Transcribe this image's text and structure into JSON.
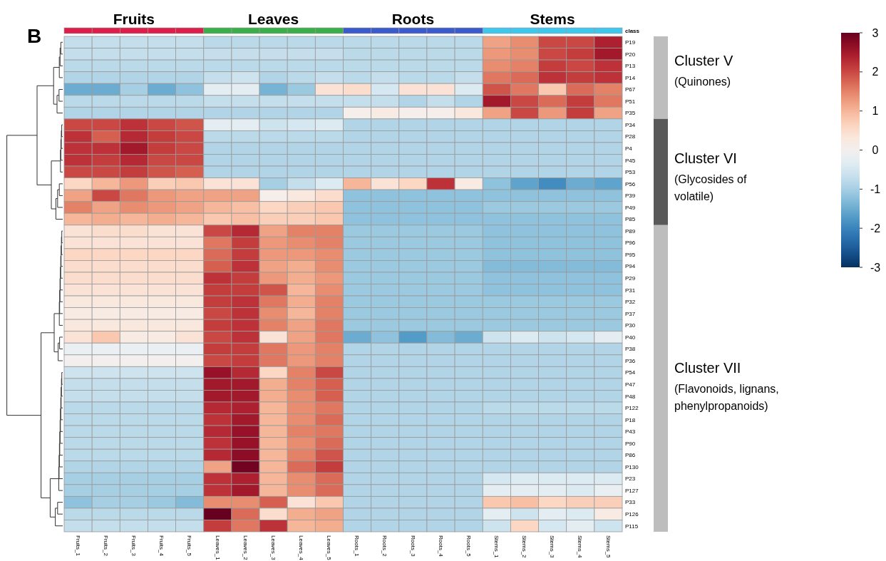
{
  "chart_data": {
    "type": "heatmap",
    "categories": [
      "Fruits_1",
      "Fruits_2",
      "Fruits_3",
      "Fruits_4",
      "Fruits_5",
      "Leaves_1",
      "Leaves_2",
      "Leaves_3",
      "Leaves_4",
      "Leaves_5",
      "Roots_1",
      "Roots_2",
      "Roots_3",
      "Roots_4",
      "Roots_5",
      "Stems_1",
      "Stems_2",
      "Stems_3",
      "Stems_4",
      "Stems_5"
    ],
    "y_categories": [
      "P19",
      "P20",
      "P13",
      "P14",
      "P67",
      "P51",
      "P35",
      "P34",
      "P28",
      "P4",
      "P45",
      "P53",
      "P56",
      "P39",
      "P49",
      "P85",
      "P89",
      "P96",
      "P95",
      "P94",
      "P29",
      "P31",
      "P32",
      "P37",
      "P30",
      "P40",
      "P38",
      "P36",
      "P54",
      "P47",
      "P48",
      "P122",
      "P18",
      "P43",
      "P90",
      "P86",
      "P130",
      "P23",
      "P127",
      "P33",
      "P126",
      "P115"
    ],
    "cells": [
      [
        -0.7,
        -0.7,
        -0.7,
        -0.7,
        -0.7,
        -0.8,
        -0.8,
        -0.8,
        -0.8,
        -0.8,
        -0.8,
        -0.8,
        -0.8,
        -0.8,
        -0.8,
        1.2,
        1.4,
        2.0,
        2.0,
        2.4
      ],
      [
        -0.7,
        -0.7,
        -0.7,
        -0.7,
        -0.7,
        -0.7,
        -0.7,
        -0.7,
        -0.7,
        -0.7,
        -0.8,
        -0.8,
        -0.8,
        -0.8,
        -0.8,
        1.3,
        1.4,
        2.0,
        2.1,
        2.5
      ],
      [
        -0.8,
        -0.8,
        -0.8,
        -0.8,
        -0.8,
        -0.8,
        -0.8,
        -0.8,
        -0.8,
        -0.8,
        -0.8,
        -0.8,
        -0.8,
        -0.8,
        -0.8,
        1.4,
        1.5,
        2.1,
        2.0,
        2.2
      ],
      [
        -0.9,
        -0.9,
        -0.9,
        -0.9,
        -0.9,
        -0.7,
        -0.6,
        -0.9,
        -0.8,
        -0.7,
        -0.8,
        -0.7,
        -0.8,
        -0.8,
        -0.7,
        1.6,
        1.7,
        2.2,
        2.1,
        2.2
      ],
      [
        -1.5,
        -1.5,
        -1.0,
        -1.5,
        -1.2,
        -0.3,
        -0.3,
        -1.4,
        -1.1,
        0.4,
        0.5,
        -0.5,
        0.4,
        0.4,
        -0.4,
        1.9,
        1.6,
        0.8,
        1.7,
        1.5
      ],
      [
        -0.8,
        -0.8,
        -0.8,
        -0.8,
        -0.8,
        -0.7,
        -0.7,
        -0.7,
        -0.7,
        -0.7,
        -0.7,
        -0.7,
        -0.9,
        -0.7,
        -0.9,
        2.5,
        2.0,
        1.7,
        2.1,
        1.6
      ],
      [
        -0.9,
        -0.9,
        -0.9,
        -0.9,
        -0.9,
        -0.9,
        -0.9,
        -0.9,
        -0.9,
        -0.9,
        0.1,
        0.2,
        0.1,
        0.1,
        0.3,
        1.2,
        2.0,
        1.3,
        2.1,
        1.2
      ],
      [
        2.0,
        2.0,
        2.2,
        2.0,
        1.9,
        -0.3,
        -0.3,
        -0.6,
        -0.5,
        -0.4,
        -0.9,
        -0.9,
        -0.9,
        -0.9,
        -0.9,
        -0.9,
        -0.9,
        -0.9,
        -0.9,
        -0.9
      ],
      [
        2.2,
        1.8,
        2.3,
        2.1,
        2.0,
        -0.8,
        -0.8,
        -0.8,
        -0.8,
        -0.8,
        -0.9,
        -0.9,
        -0.9,
        -0.9,
        -0.9,
        -0.9,
        -0.9,
        -0.9,
        -0.9,
        -0.9
      ],
      [
        2.2,
        2.2,
        2.5,
        2.1,
        2.0,
        -0.9,
        -0.9,
        -0.9,
        -0.9,
        -0.9,
        -0.9,
        -0.9,
        -0.9,
        -0.9,
        -0.9,
        -0.9,
        -0.9,
        -0.9,
        -0.9,
        -0.9
      ],
      [
        2.2,
        2.1,
        2.3,
        2.0,
        2.0,
        -0.9,
        -0.9,
        -0.9,
        -0.9,
        -0.9,
        -0.9,
        -0.9,
        -0.9,
        -0.9,
        -0.9,
        -0.9,
        -0.9,
        -0.9,
        -0.9,
        -0.9
      ],
      [
        2.0,
        2.0,
        2.1,
        1.9,
        1.8,
        -0.9,
        -0.9,
        -0.9,
        -0.9,
        -0.9,
        -0.9,
        -0.9,
        -0.9,
        -0.9,
        -0.9,
        -0.9,
        -0.9,
        -0.9,
        -0.9,
        -0.9
      ],
      [
        0.6,
        1.0,
        1.3,
        0.7,
        0.8,
        0.4,
        0.4,
        -1.0,
        -0.7,
        -0.4,
        1.0,
        0.4,
        0.6,
        2.2,
        0.2,
        -1.2,
        -1.6,
        -1.9,
        -1.5,
        -1.6
      ],
      [
        1.2,
        2.0,
        1.6,
        1.3,
        1.2,
        1.2,
        1.2,
        0.1,
        0.3,
        0.5,
        -1.2,
        -1.2,
        -1.2,
        -1.2,
        -1.2,
        -1.2,
        -1.2,
        -1.2,
        -1.2,
        -1.2
      ],
      [
        1.5,
        1.2,
        1.4,
        1.3,
        1.2,
        1.0,
        0.9,
        0.6,
        0.7,
        0.8,
        -1.2,
        -1.2,
        -1.2,
        -1.2,
        -1.2,
        -1.1,
        -1.1,
        -1.1,
        -1.1,
        -1.1
      ],
      [
        1.0,
        1.1,
        1.0,
        1.1,
        1.0,
        0.8,
        0.9,
        0.7,
        0.7,
        0.8,
        -1.2,
        -1.2,
        -1.2,
        -1.2,
        -1.2,
        -1.2,
        -1.2,
        -1.2,
        -1.2,
        -1.2
      ],
      [
        0.4,
        0.5,
        0.5,
        0.4,
        0.4,
        2.0,
        2.3,
        1.2,
        1.5,
        1.5,
        -1.1,
        -1.1,
        -1.1,
        -1.1,
        -1.1,
        -1.2,
        -1.2,
        -1.2,
        -1.2,
        -1.2
      ],
      [
        0.4,
        0.4,
        0.4,
        0.4,
        0.4,
        1.6,
        2.1,
        1.3,
        1.4,
        1.5,
        -1.1,
        -1.1,
        -1.1,
        -1.1,
        -1.1,
        -1.2,
        -1.2,
        -1.2,
        -1.2,
        -1.2
      ],
      [
        0.6,
        0.6,
        0.6,
        0.6,
        0.6,
        1.7,
        2.1,
        1.3,
        1.3,
        1.4,
        -1.1,
        -1.1,
        -1.1,
        -1.1,
        -1.1,
        -1.2,
        -1.2,
        -1.2,
        -1.2,
        -1.2
      ],
      [
        0.5,
        0.5,
        0.5,
        0.5,
        0.5,
        1.8,
        2.2,
        1.2,
        1.1,
        1.4,
        -1.1,
        -1.1,
        -1.1,
        -1.1,
        -1.1,
        -1.3,
        -1.3,
        -1.3,
        -1.3,
        -1.3
      ],
      [
        0.5,
        0.5,
        0.5,
        0.5,
        0.5,
        2.2,
        2.1,
        1.3,
        1.1,
        1.3,
        -1.1,
        -1.1,
        -1.1,
        -1.1,
        -1.1,
        -1.2,
        -1.2,
        -1.2,
        -1.2,
        -1.2
      ],
      [
        0.4,
        0.4,
        0.4,
        0.4,
        0.4,
        2.1,
        2.1,
        1.9,
        1.0,
        1.4,
        -1.1,
        -1.1,
        -1.1,
        -1.1,
        -1.1,
        -1.2,
        -1.2,
        -1.2,
        -1.2,
        -1.2
      ],
      [
        0.3,
        0.3,
        0.3,
        0.3,
        0.3,
        2.1,
        2.2,
        1.6,
        1.1,
        1.5,
        -1.1,
        -1.1,
        -1.1,
        -1.1,
        -1.1,
        -1.1,
        -1.1,
        -1.1,
        -1.1,
        -1.1
      ],
      [
        0.2,
        0.2,
        0.2,
        0.2,
        0.2,
        2.0,
        2.2,
        1.4,
        1.0,
        1.5,
        -1.1,
        -1.1,
        -1.1,
        -1.1,
        -1.1,
        -1.1,
        -1.1,
        -1.1,
        -1.1,
        -1.1
      ],
      [
        0.3,
        0.3,
        0.3,
        0.3,
        0.3,
        2.1,
        2.2,
        1.5,
        1.2,
        1.6,
        -1.1,
        -1.1,
        -1.1,
        -1.1,
        -1.1,
        -1.1,
        -1.1,
        -1.1,
        -1.1,
        -1.1
      ],
      [
        0.4,
        0.8,
        0.2,
        0.2,
        0.4,
        2.0,
        2.2,
        0.4,
        1.2,
        1.6,
        -1.5,
        -1.2,
        -1.7,
        -1.3,
        -1.5,
        -0.6,
        -0.4,
        -0.6,
        -0.5,
        -0.3
      ],
      [
        -0.2,
        -0.2,
        -0.2,
        -0.2,
        -0.2,
        2.1,
        2.1,
        1.6,
        1.3,
        1.5,
        -0.9,
        -0.9,
        -0.9,
        -0.9,
        -0.9,
        -0.9,
        -0.9,
        -0.9,
        -0.9,
        -0.9
      ],
      [
        0.0,
        0.0,
        0.0,
        0.0,
        0.0,
        2.0,
        2.1,
        1.6,
        1.3,
        1.5,
        -0.9,
        -0.9,
        -0.9,
        -0.9,
        -0.9,
        -0.9,
        -0.9,
        -0.9,
        -0.9,
        -0.9
      ],
      [
        -0.6,
        -0.6,
        -0.6,
        -0.6,
        -0.6,
        2.6,
        2.3,
        0.6,
        1.5,
        2.0,
        -0.9,
        -0.9,
        -0.9,
        -0.9,
        -0.9,
        -0.9,
        -0.9,
        -0.9,
        -0.9,
        -0.9
      ],
      [
        -0.7,
        -0.7,
        -0.7,
        -0.7,
        -0.7,
        2.5,
        2.5,
        1.1,
        1.5,
        1.8,
        -0.9,
        -0.9,
        -0.9,
        -0.9,
        -0.9,
        -0.9,
        -0.9,
        -0.9,
        -0.9,
        -0.9
      ],
      [
        -0.7,
        -0.7,
        -0.7,
        -0.7,
        -0.7,
        2.5,
        2.5,
        1.1,
        1.4,
        1.8,
        -0.9,
        -0.9,
        -0.9,
        -0.9,
        -0.9,
        -0.9,
        -0.9,
        -0.9,
        -0.9,
        -0.9
      ],
      [
        -0.8,
        -0.8,
        -0.8,
        -0.8,
        -0.8,
        2.3,
        2.4,
        1.0,
        1.4,
        1.6,
        -0.9,
        -0.9,
        -0.9,
        -0.9,
        -0.9,
        -0.8,
        -0.8,
        -0.8,
        -0.8,
        -0.8
      ],
      [
        -0.8,
        -0.8,
        -0.8,
        -0.8,
        -0.8,
        2.2,
        2.5,
        1.0,
        1.4,
        1.7,
        -0.9,
        -0.9,
        -0.9,
        -0.9,
        -0.9,
        -0.9,
        -0.9,
        -0.9,
        -0.9,
        -0.9
      ],
      [
        -0.8,
        -0.8,
        -0.8,
        -0.8,
        -0.8,
        2.3,
        2.6,
        1.0,
        1.5,
        1.6,
        -0.9,
        -0.9,
        -0.9,
        -0.9,
        -0.9,
        -0.9,
        -0.9,
        -0.9,
        -0.9,
        -0.9
      ],
      [
        -0.8,
        -0.8,
        -0.8,
        -0.8,
        -0.8,
        2.2,
        2.6,
        1.0,
        1.4,
        1.7,
        -0.9,
        -0.9,
        -0.9,
        -0.9,
        -0.9,
        -0.9,
        -0.9,
        -0.9,
        -0.9,
        -0.9
      ],
      [
        -0.8,
        -0.8,
        -0.8,
        -0.8,
        -0.8,
        2.3,
        2.7,
        1.0,
        1.5,
        1.9,
        -0.9,
        -0.9,
        -0.9,
        -0.9,
        -0.9,
        -0.9,
        -0.9,
        -0.9,
        -0.9,
        -0.9
      ],
      [
        -0.9,
        -0.9,
        -0.9,
        -0.9,
        -0.9,
        1.2,
        2.9,
        1.0,
        1.7,
        2.1,
        -0.9,
        -0.9,
        -0.9,
        -0.9,
        -0.9,
        -0.9,
        -0.9,
        -0.9,
        -0.9,
        -0.9
      ],
      [
        -1.0,
        -1.0,
        -1.0,
        -1.0,
        -1.0,
        2.2,
        2.4,
        1.0,
        1.4,
        1.7,
        -0.9,
        -0.9,
        -0.9,
        -0.9,
        -0.9,
        -0.5,
        -0.4,
        -0.4,
        -0.4,
        -0.4
      ],
      [
        -1.0,
        -1.0,
        -1.0,
        -1.0,
        -1.0,
        2.2,
        2.5,
        1.0,
        1.4,
        1.7,
        -0.9,
        -0.9,
        -0.9,
        -0.9,
        -0.9,
        -0.3,
        -0.3,
        -0.3,
        -0.4,
        -0.2
      ],
      [
        -1.2,
        -1.0,
        -1.0,
        -1.1,
        -1.3,
        1.4,
        1.4,
        1.8,
        0.4,
        0.8,
        -0.9,
        -0.9,
        -0.9,
        -0.9,
        -0.9,
        0.8,
        0.9,
        0.6,
        0.7,
        0.7
      ],
      [
        -0.8,
        -0.8,
        -0.8,
        -0.8,
        -0.8,
        3.0,
        1.7,
        0.5,
        1.1,
        1.2,
        -0.9,
        -0.9,
        -0.9,
        -0.9,
        -0.9,
        -0.3,
        -0.6,
        -0.3,
        -0.4,
        0.2
      ],
      [
        -0.7,
        -0.7,
        -0.7,
        -0.7,
        -0.7,
        2.1,
        1.6,
        2.2,
        1.0,
        1.1,
        -0.9,
        -0.9,
        -0.9,
        -0.9,
        -0.9,
        -0.6,
        0.6,
        -0.5,
        -0.3,
        -0.6
      ]
    ],
    "clim": [
      -3,
      3
    ],
    "cticks": [
      -3,
      -2,
      -1,
      0,
      1,
      2,
      3
    ],
    "annotations": [
      "B",
      "Fruits",
      "Leaves",
      "Roots",
      "Stems",
      "class",
      "Cluster V",
      "(Quinones)",
      "Cluster VI",
      "(Glycosides of volatile)",
      "Cluster VII",
      "(Flavonoids, lignans, phenylpropanoids)"
    ]
  }
}
